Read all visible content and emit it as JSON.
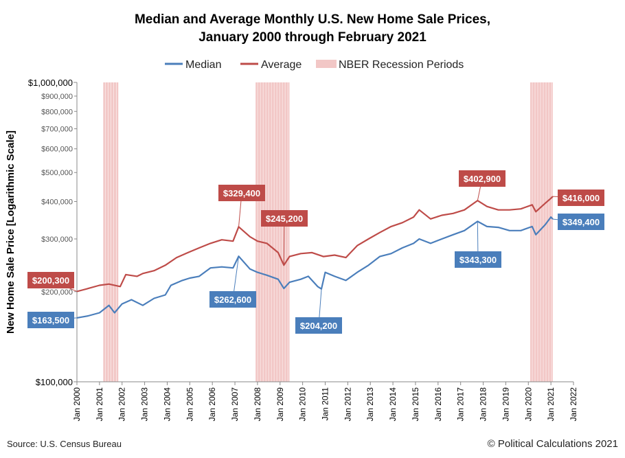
{
  "chart_data": {
    "type": "line",
    "title_line1": "Median and Average Monthly U.S. New Home Sale Prices,",
    "title_line2": "January 2000 through February 2021",
    "ylabel": "New Home Sale Price [Logarithmic Scale]",
    "xlabel": "",
    "y_scale": "log",
    "ylim": [
      100000,
      1000000
    ],
    "xlim": [
      "2000-01",
      "2022-01"
    ],
    "grid": false,
    "legend_position": "top-center",
    "legend": {
      "median": "Median",
      "average": "Average",
      "recession": "NBER Recession Periods"
    },
    "colors": {
      "median": "#4a7ebb",
      "average": "#be4b48",
      "recession": "#f2c7c6"
    },
    "x_ticks": [
      "Jan 2000",
      "Jan 2001",
      "Jan 2002",
      "Jan 2003",
      "Jan 2004",
      "Jan 2005",
      "Jan 2006",
      "Jan 2007",
      "Jan 2008",
      "Jan 2009",
      "Jan 2010",
      "Jan 2011",
      "Jan 2012",
      "Jan 2013",
      "Jan 2014",
      "Jan 2015",
      "Jan 2016",
      "Jan 2017",
      "Jan 2018",
      "Jan 2019",
      "Jan 2020",
      "Jan 2021",
      "Jan 2022"
    ],
    "y_ticks_major": [
      {
        "value": 100000,
        "label": "$100,000"
      },
      {
        "value": 1000000,
        "label": "$1,000,000"
      }
    ],
    "y_ticks_minor": [
      {
        "value": 200000,
        "label": "$200,000"
      },
      {
        "value": 300000,
        "label": "$300,000"
      },
      {
        "value": 400000,
        "label": "$400,000"
      },
      {
        "value": 500000,
        "label": "$500,000"
      },
      {
        "value": 600000,
        "label": "$600,000"
      },
      {
        "value": 700000,
        "label": "$700,000"
      },
      {
        "value": 800000,
        "label": "$800,000"
      },
      {
        "value": 900000,
        "label": "$900,000"
      }
    ],
    "recessions": [
      {
        "start": "2001-03",
        "end": "2001-11"
      },
      {
        "start": "2007-12",
        "end": "2009-06"
      },
      {
        "start": "2020-02",
        "end": "2021-02"
      }
    ],
    "series": [
      {
        "name": "Median",
        "points": [
          [
            "2000-01",
            163500
          ],
          [
            "2000-07",
            166000
          ],
          [
            "2001-01",
            170000
          ],
          [
            "2001-06",
            180000
          ],
          [
            "2001-09",
            170000
          ],
          [
            "2002-01",
            182000
          ],
          [
            "2002-06",
            188000
          ],
          [
            "2002-12",
            180000
          ],
          [
            "2003-06",
            190000
          ],
          [
            "2003-12",
            195000
          ],
          [
            "2004-03",
            210000
          ],
          [
            "2004-09",
            218000
          ],
          [
            "2005-01",
            222000
          ],
          [
            "2005-06",
            225000
          ],
          [
            "2005-12",
            240000
          ],
          [
            "2006-06",
            242000
          ],
          [
            "2006-12",
            240000
          ],
          [
            "2007-03",
            262600
          ],
          [
            "2007-09",
            238000
          ],
          [
            "2008-01",
            232000
          ],
          [
            "2008-06",
            227000
          ],
          [
            "2008-12",
            220000
          ],
          [
            "2009-03",
            205000
          ],
          [
            "2009-06",
            215000
          ],
          [
            "2009-12",
            220000
          ],
          [
            "2010-04",
            225000
          ],
          [
            "2010-09",
            208000
          ],
          [
            "2010-11",
            204200
          ],
          [
            "2011-01",
            232000
          ],
          [
            "2011-06",
            225000
          ],
          [
            "2011-12",
            218000
          ],
          [
            "2012-06",
            232000
          ],
          [
            "2012-12",
            245000
          ],
          [
            "2013-06",
            262000
          ],
          [
            "2013-12",
            268000
          ],
          [
            "2014-06",
            280000
          ],
          [
            "2014-12",
            290000
          ],
          [
            "2015-03",
            300000
          ],
          [
            "2015-09",
            290000
          ],
          [
            "2016-03",
            300000
          ],
          [
            "2016-09",
            310000
          ],
          [
            "2017-03",
            320000
          ],
          [
            "2017-10",
            343300
          ],
          [
            "2018-03",
            330000
          ],
          [
            "2018-09",
            328000
          ],
          [
            "2019-03",
            320000
          ],
          [
            "2019-09",
            320000
          ],
          [
            "2020-03",
            330000
          ],
          [
            "2020-05",
            310000
          ],
          [
            "2020-10",
            335000
          ],
          [
            "2021-01",
            355000
          ],
          [
            "2021-02",
            349400
          ]
        ]
      },
      {
        "name": "Average",
        "points": [
          [
            "2000-01",
            200300
          ],
          [
            "2000-07",
            205000
          ],
          [
            "2001-01",
            210000
          ],
          [
            "2001-06",
            212000
          ],
          [
            "2001-12",
            208000
          ],
          [
            "2002-03",
            228000
          ],
          [
            "2002-09",
            225000
          ],
          [
            "2002-12",
            230000
          ],
          [
            "2003-06",
            235000
          ],
          [
            "2003-12",
            245000
          ],
          [
            "2004-06",
            260000
          ],
          [
            "2004-12",
            270000
          ],
          [
            "2005-06",
            280000
          ],
          [
            "2005-12",
            290000
          ],
          [
            "2006-06",
            298000
          ],
          [
            "2006-12",
            295000
          ],
          [
            "2007-03",
            329400
          ],
          [
            "2007-09",
            305000
          ],
          [
            "2008-01",
            295000
          ],
          [
            "2008-06",
            290000
          ],
          [
            "2008-12",
            270000
          ],
          [
            "2009-03",
            245200
          ],
          [
            "2009-06",
            262000
          ],
          [
            "2009-12",
            268000
          ],
          [
            "2010-06",
            270000
          ],
          [
            "2010-12",
            262000
          ],
          [
            "2011-06",
            265000
          ],
          [
            "2011-12",
            260000
          ],
          [
            "2012-06",
            285000
          ],
          [
            "2012-12",
            300000
          ],
          [
            "2013-06",
            315000
          ],
          [
            "2013-12",
            330000
          ],
          [
            "2014-06",
            340000
          ],
          [
            "2014-12",
            355000
          ],
          [
            "2015-03",
            375000
          ],
          [
            "2015-09",
            350000
          ],
          [
            "2016-03",
            360000
          ],
          [
            "2016-09",
            365000
          ],
          [
            "2017-03",
            375000
          ],
          [
            "2017-10",
            402900
          ],
          [
            "2018-03",
            385000
          ],
          [
            "2018-09",
            375000
          ],
          [
            "2019-03",
            375000
          ],
          [
            "2019-09",
            378000
          ],
          [
            "2020-03",
            390000
          ],
          [
            "2020-05",
            370000
          ],
          [
            "2020-10",
            395000
          ],
          [
            "2021-01",
            410000
          ],
          [
            "2021-02",
            416000
          ]
        ]
      }
    ],
    "annotations": [
      {
        "series": "Average",
        "x": "2000-01",
        "value": 200300,
        "text": "$200,300"
      },
      {
        "series": "Median",
        "x": "2000-01",
        "value": 163500,
        "text": "$163,500"
      },
      {
        "series": "Average",
        "x": "2007-03",
        "value": 329400,
        "text": "$329,400"
      },
      {
        "series": "Average",
        "x": "2009-03",
        "value": 245200,
        "text": "$245,200"
      },
      {
        "series": "Median",
        "x": "2007-03",
        "value": 262600,
        "text": "$262,600"
      },
      {
        "series": "Median",
        "x": "2010-11",
        "value": 204200,
        "text": "$204,200"
      },
      {
        "series": "Average",
        "x": "2017-10",
        "value": 402900,
        "text": "$402,900"
      },
      {
        "series": "Median",
        "x": "2017-10",
        "value": 343300,
        "text": "$343,300"
      },
      {
        "series": "Average",
        "x": "2021-02",
        "value": 416000,
        "text": "$416,000"
      },
      {
        "series": "Median",
        "x": "2021-02",
        "value": 349400,
        "text": "$349,400"
      }
    ]
  },
  "footer": {
    "source": "Source: U.S. Census Bureau",
    "copyright": "© Political Calculations 2021"
  }
}
